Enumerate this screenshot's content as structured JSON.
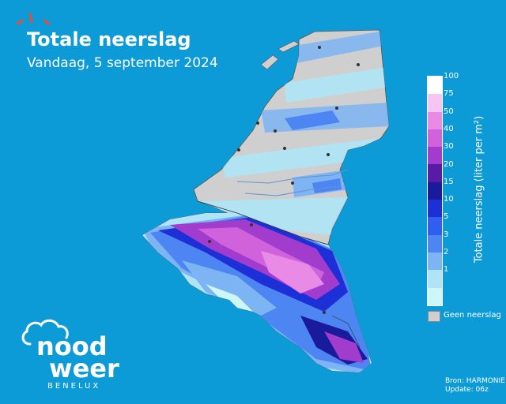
{
  "header": {
    "title": "Totale neerslag",
    "subtitle": "Vandaag, 5 september 2024"
  },
  "legend": {
    "title": "Totale neerslag (liter per m²)",
    "ticks": [
      "100",
      "75",
      "50",
      "40",
      "30",
      "20",
      "15",
      "10",
      "5",
      "3",
      "2",
      "1"
    ],
    "no_data_label": "Geen neerslag",
    "colors": [
      "#ffffff",
      "#f6c6f2",
      "#e88ae6",
      "#d062dc",
      "#a13ccc",
      "#5a1aa6",
      "#1a1a9c",
      "#1d2fd6",
      "#2f5ef0",
      "#4d86f2",
      "#7cb4f4",
      "#aee4f6",
      "#cdf6f6"
    ]
  },
  "source": {
    "line1": "Bron: HARMONIE",
    "line2": "Update: 06z"
  },
  "logo": {
    "word1": "nood",
    "word2": "weer",
    "region": "BENELUX"
  },
  "colors": {
    "background": "#0d9bd8",
    "land": "#cfcfcf"
  }
}
